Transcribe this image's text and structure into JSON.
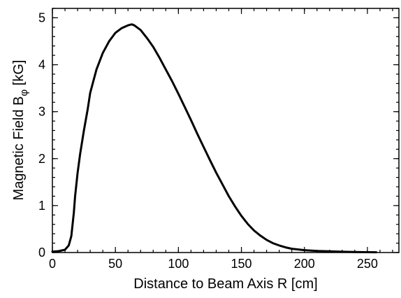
{
  "chart_data": {
    "type": "line",
    "title": "",
    "xlabel": "Distance to Beam Axis  R [cm]",
    "ylabel": "Magnetic Field  B",
    "ylabel_subscript": "φ",
    "ylabel_unit": " [kG]",
    "xlim": [
      0,
      275
    ],
    "ylim": [
      0,
      5.2
    ],
    "xticks": [
      0,
      50,
      100,
      150,
      200,
      250
    ],
    "yticks": [
      0,
      1,
      2,
      3,
      4,
      5
    ],
    "x_minor_step": 10,
    "y_minor_step": 0.2,
    "grid": false,
    "series": [
      {
        "x": [
          0,
          5,
          10,
          13,
          15,
          17,
          18,
          20,
          22,
          25,
          28,
          30,
          35,
          40,
          45,
          50,
          55,
          60,
          63,
          65,
          70,
          75,
          80,
          85,
          90,
          95,
          100,
          105,
          110,
          115,
          120,
          125,
          130,
          135,
          140,
          145,
          150,
          155,
          160,
          165,
          170,
          175,
          180,
          185,
          190,
          200,
          210,
          220,
          230,
          240,
          250,
          257
        ],
        "y": [
          0.02,
          0.03,
          0.06,
          0.15,
          0.35,
          0.85,
          1.2,
          1.7,
          2.1,
          2.6,
          3.05,
          3.4,
          3.9,
          4.25,
          4.5,
          4.68,
          4.78,
          4.84,
          4.86,
          4.84,
          4.74,
          4.57,
          4.38,
          4.15,
          3.9,
          3.65,
          3.38,
          3.1,
          2.82,
          2.53,
          2.25,
          1.97,
          1.7,
          1.45,
          1.2,
          0.98,
          0.78,
          0.61,
          0.47,
          0.36,
          0.27,
          0.2,
          0.15,
          0.11,
          0.08,
          0.05,
          0.035,
          0.025,
          0.017,
          0.012,
          0.008,
          0.006
        ]
      }
    ]
  }
}
